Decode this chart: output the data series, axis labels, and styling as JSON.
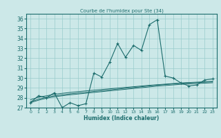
{
  "title": "Courbe de l'humidex pour Ste (34)",
  "xlabel": "Humidex (Indice chaleur)",
  "bg_color": "#cce8e8",
  "grid_color": "#99cccc",
  "line_color": "#1a6b6b",
  "xlim": [
    -0.5,
    23.5
  ],
  "ylim": [
    27,
    36.5
  ],
  "yticks": [
    27,
    28,
    29,
    30,
    31,
    32,
    33,
    34,
    35,
    36
  ],
  "xticks": [
    0,
    1,
    2,
    3,
    4,
    5,
    6,
    7,
    8,
    9,
    10,
    11,
    12,
    13,
    14,
    15,
    16,
    17,
    18,
    19,
    20,
    21,
    22,
    23
  ],
  "main_data": [
    27.5,
    28.2,
    28.0,
    28.5,
    27.0,
    27.5,
    27.2,
    27.4,
    30.5,
    30.1,
    31.6,
    33.5,
    32.1,
    33.3,
    32.8,
    35.4,
    35.9,
    30.2,
    30.0,
    29.5,
    29.2,
    29.3,
    29.8,
    29.9
  ],
  "smooth1": [
    27.5,
    27.75,
    27.95,
    28.1,
    28.2,
    28.3,
    28.38,
    28.46,
    28.54,
    28.62,
    28.7,
    28.78,
    28.86,
    28.94,
    29.02,
    29.1,
    29.18,
    29.24,
    29.3,
    29.36,
    29.4,
    29.44,
    29.48,
    29.52
  ],
  "smooth2": [
    27.6,
    27.85,
    28.05,
    28.2,
    28.3,
    28.4,
    28.48,
    28.56,
    28.64,
    28.72,
    28.8,
    28.88,
    28.96,
    29.04,
    29.12,
    29.2,
    29.28,
    29.34,
    29.4,
    29.46,
    29.5,
    29.54,
    29.58,
    29.62
  ],
  "smooth3": [
    27.8,
    28.05,
    28.2,
    28.35,
    28.45,
    28.54,
    28.62,
    28.7,
    28.77,
    28.84,
    28.91,
    28.98,
    29.05,
    29.12,
    29.19,
    29.26,
    29.32,
    29.38,
    29.44,
    29.5,
    29.54,
    29.58,
    29.62,
    29.66
  ]
}
